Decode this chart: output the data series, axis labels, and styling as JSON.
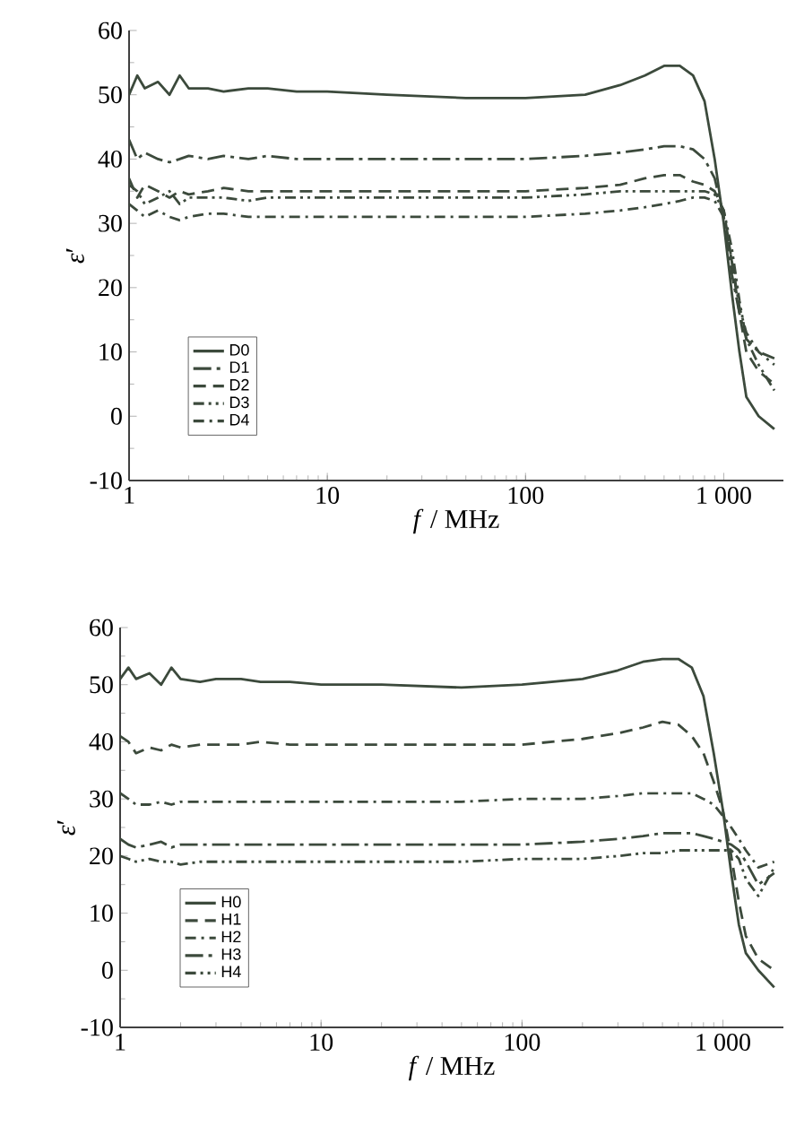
{
  "chart_data": [
    {
      "type": "line",
      "xlabel": "*f* / MHz",
      "ylabel": "*ε*′",
      "log": "x",
      "xlim": [
        1,
        2000
      ],
      "ylim": [
        -10,
        60
      ],
      "xticks": [
        1,
        10,
        100,
        {
          "value": 1000,
          "label": "1 000"
        }
      ],
      "yticks": [
        -10,
        0,
        10,
        20,
        30,
        40,
        50,
        60
      ],
      "legend": "bottom left",
      "marker": "none",
      "x": [
        1,
        1.1,
        1.2,
        1.4,
        1.6,
        1.8,
        2,
        2.5,
        3,
        4,
        5,
        7,
        10,
        20,
        50,
        100,
        200,
        300,
        400,
        500,
        600,
        700,
        800,
        900,
        1000,
        1100,
        1200,
        1300,
        1500,
        1800
      ],
      "series": [
        {
          "name": "D0",
          "color": "#3c4a3c",
          "line_style": "solid",
          "values": [
            50,
            53,
            51,
            52,
            50,
            53,
            51,
            51,
            50.5,
            51,
            51,
            50.5,
            50.5,
            50,
            49.5,
            49.5,
            50,
            51.5,
            53,
            54.5,
            54.5,
            53,
            49,
            40,
            30,
            19,
            10,
            3,
            0,
            -2
          ]
        },
        {
          "name": "D1",
          "color": "#3c4a3c",
          "line_style": "longdashdot",
          "values": [
            43,
            40,
            41,
            40,
            39.5,
            40,
            40.5,
            40,
            40.5,
            40,
            40.5,
            40,
            40,
            40,
            40,
            40,
            40.5,
            41,
            41.5,
            42,
            42,
            41.5,
            40,
            37,
            31,
            22,
            16,
            12,
            10,
            9
          ]
        },
        {
          "name": "D2",
          "color": "#3c4a3c",
          "line_style": "dashed",
          "values": [
            37,
            34,
            36,
            35,
            34,
            35,
            34.5,
            35,
            35.5,
            35,
            35,
            35,
            35,
            35,
            35,
            35,
            35.5,
            36,
            37,
            37.5,
            37.5,
            36.5,
            36,
            35,
            32,
            24,
            16,
            10,
            7,
            5
          ]
        },
        {
          "name": "D3",
          "color": "#3c4a3c",
          "line_style": "dashdotdot",
          "values": [
            36,
            35,
            33,
            34,
            35,
            33,
            34,
            34,
            34,
            33.5,
            34,
            34,
            34,
            34,
            34,
            34,
            34.5,
            35,
            35,
            35,
            35,
            35,
            35,
            34.5,
            32,
            26,
            18,
            12,
            8,
            4
          ]
        },
        {
          "name": "D4",
          "color": "#3c4a3c",
          "line_style": "dashdot",
          "values": [
            33,
            32,
            31,
            32,
            31,
            30.5,
            31,
            31.5,
            31.5,
            31,
            31,
            31,
            31,
            31,
            31,
            31,
            31.5,
            32,
            32.5,
            33,
            33.5,
            34,
            34,
            33.5,
            31,
            24,
            17,
            13,
            10,
            8
          ]
        }
      ]
    },
    {
      "type": "line",
      "xlabel": "*f* / MHz",
      "ylabel": "*ε*′",
      "log": "x",
      "xlim": [
        1,
        2000
      ],
      "ylim": [
        -10,
        60
      ],
      "xticks": [
        1,
        10,
        100,
        {
          "value": 1000,
          "label": "1 000"
        }
      ],
      "yticks": [
        -10,
        0,
        10,
        20,
        30,
        40,
        50,
        60
      ],
      "legend": "bottom left",
      "marker": "none",
      "x": [
        1,
        1.1,
        1.2,
        1.4,
        1.6,
        1.8,
        2,
        2.5,
        3,
        4,
        5,
        7,
        10,
        20,
        50,
        100,
        200,
        300,
        400,
        500,
        600,
        700,
        800,
        900,
        1000,
        1100,
        1200,
        1300,
        1500,
        1800
      ],
      "series": [
        {
          "name": "H0",
          "color": "#3c4a3c",
          "line_style": "solid",
          "values": [
            51,
            53,
            51,
            52,
            50,
            53,
            51,
            50.5,
            51,
            51,
            50.5,
            50.5,
            50,
            50,
            49.5,
            50,
            51,
            52.5,
            54,
            54.5,
            54.5,
            53,
            48,
            38,
            28,
            17,
            8,
            3,
            0,
            -3
          ]
        },
        {
          "name": "H1",
          "color": "#3c4a3c",
          "line_style": "dashed",
          "values": [
            41,
            40,
            38,
            39,
            38.5,
            39.5,
            39,
            39.5,
            39.5,
            39.5,
            40,
            39.5,
            39.5,
            39.5,
            39.5,
            39.5,
            40.5,
            41.5,
            42.5,
            43.5,
            43,
            41,
            38,
            33,
            28,
            20,
            12,
            6,
            2,
            0
          ]
        },
        {
          "name": "H2",
          "color": "#3c4a3c",
          "line_style": "dashdot",
          "values": [
            31,
            30,
            29,
            29,
            29.5,
            29,
            29.5,
            29.5,
            29.5,
            29.5,
            29.5,
            29.5,
            29.5,
            29.5,
            29.5,
            30,
            30,
            30.5,
            31,
            31,
            31,
            31,
            30,
            29,
            27,
            25,
            23,
            21,
            18,
            19
          ]
        },
        {
          "name": "H3",
          "color": "#3c4a3c",
          "line_style": "longdashdot",
          "values": [
            23,
            22,
            21.5,
            22,
            22.5,
            21.5,
            22,
            22,
            22,
            22,
            22,
            22,
            22,
            22,
            22,
            22,
            22.5,
            23,
            23.5,
            24,
            24,
            24,
            23.5,
            23,
            22.5,
            22,
            21,
            19,
            15,
            17
          ]
        },
        {
          "name": "H4",
          "color": "#3c4a3c",
          "line_style": "dashdotdot",
          "values": [
            20,
            19.5,
            19,
            19.5,
            19,
            19,
            18.5,
            19,
            19,
            19,
            19,
            19,
            19,
            19,
            19,
            19.5,
            19.5,
            20,
            20.5,
            20.5,
            21,
            21,
            21,
            21,
            21,
            21,
            19.5,
            16,
            13,
            18
          ]
        }
      ]
    }
  ]
}
